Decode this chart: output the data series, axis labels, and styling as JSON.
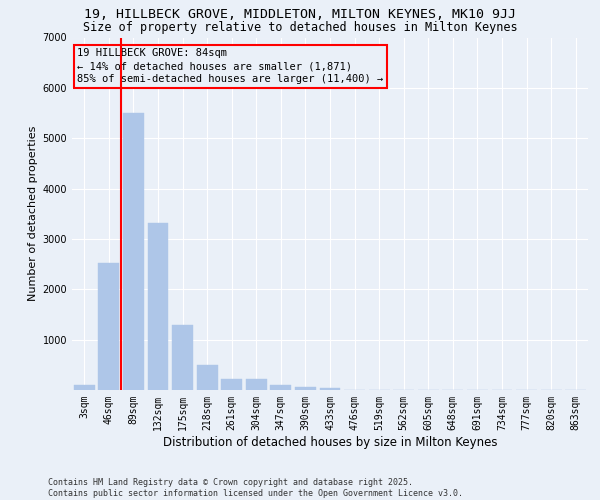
{
  "title_line1": "19, HILLBECK GROVE, MIDDLETON, MILTON KEYNES, MK10 9JJ",
  "title_line2": "Size of property relative to detached houses in Milton Keynes",
  "xlabel": "Distribution of detached houses by size in Milton Keynes",
  "ylabel": "Number of detached properties",
  "categories": [
    "3sqm",
    "46sqm",
    "89sqm",
    "132sqm",
    "175sqm",
    "218sqm",
    "261sqm",
    "304sqm",
    "347sqm",
    "390sqm",
    "433sqm",
    "476sqm",
    "519sqm",
    "562sqm",
    "605sqm",
    "648sqm",
    "691sqm",
    "734sqm",
    "777sqm",
    "820sqm",
    "863sqm"
  ],
  "values": [
    90,
    2520,
    5500,
    3320,
    1290,
    490,
    210,
    210,
    100,
    50,
    30,
    0,
    0,
    0,
    0,
    0,
    0,
    0,
    0,
    0,
    0
  ],
  "bar_color": "#aec6e8",
  "bar_edge_color": "#aec6e8",
  "vline_color": "red",
  "vline_x_index": 1.5,
  "annotation_text": "19 HILLBECK GROVE: 84sqm\n← 14% of detached houses are smaller (1,871)\n85% of semi-detached houses are larger (11,400) →",
  "annotation_box_color": "red",
  "annotation_text_color": "black",
  "ylim": [
    0,
    7000
  ],
  "yticks": [
    0,
    1000,
    2000,
    3000,
    4000,
    5000,
    6000,
    7000
  ],
  "background_color": "#eaf0f8",
  "grid_color": "white",
  "footer_text": "Contains HM Land Registry data © Crown copyright and database right 2025.\nContains public sector information licensed under the Open Government Licence v3.0.",
  "title_fontsize": 9.5,
  "subtitle_fontsize": 8.5,
  "ylabel_fontsize": 8,
  "xlabel_fontsize": 8.5,
  "tick_fontsize": 7,
  "annotation_fontsize": 7.5,
  "footer_fontsize": 6
}
